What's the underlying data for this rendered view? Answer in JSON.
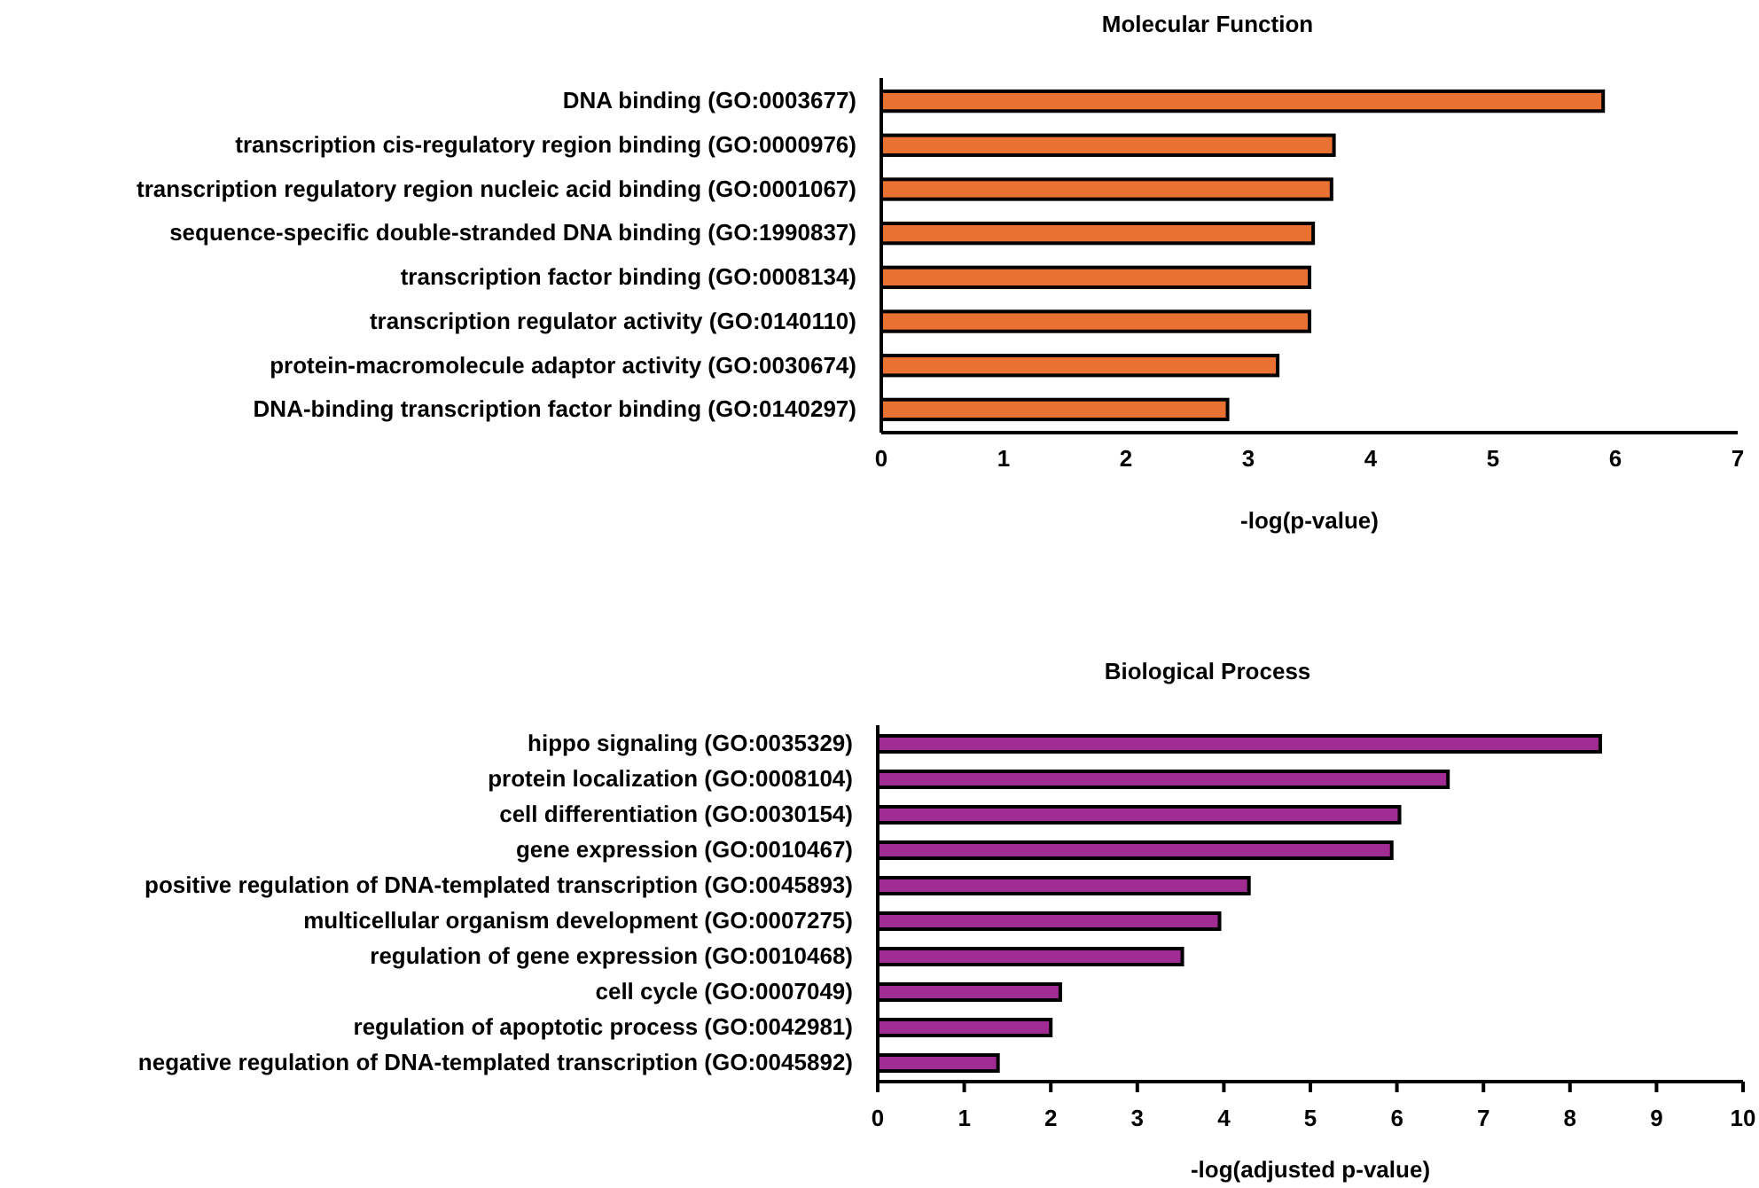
{
  "chart_data": [
    {
      "type": "bar",
      "orientation": "horizontal",
      "title": "Molecular Function",
      "xlabel": "-log(p-value)",
      "categories": [
        "DNA binding (GO:0003677)",
        "transcription cis-regulatory region binding (GO:0000976)",
        "transcription regulatory region nucleic acid binding (GO:0001067)",
        "sequence-specific double-stranded DNA binding (GO:1990837)",
        "transcription factor binding (GO:0008134)",
        "transcription regulator activity (GO:0140110)",
        "protein-macromolecule adaptor activity (GO:0030674)",
        "DNA-binding transcription factor binding (GO:0140297)"
      ],
      "values": [
        5.9,
        3.7,
        3.68,
        3.53,
        3.5,
        3.5,
        3.24,
        2.83
      ],
      "color": "#e97132",
      "xlim": [
        0,
        7
      ],
      "xticks": [
        0,
        1,
        2,
        3,
        4,
        5,
        6,
        7
      ],
      "grid": false
    },
    {
      "type": "bar",
      "orientation": "horizontal",
      "title": "Biological Process",
      "xlabel": "-log(adjusted p-value)",
      "categories": [
        "hippo signaling (GO:0035329)",
        "protein localization (GO:0008104)",
        "cell differentiation (GO:0030154)",
        "gene expression (GO:0010467)",
        "positive regulation of DNA-templated transcription (GO:0045893)",
        "multicellular organism development (GO:0007275)",
        "regulation of gene expression (GO:0010468)",
        "cell cycle (GO:0007049)",
        "regulation of apoptotic process (GO:0042981)",
        "negative regulation of DNA-templated transcription (GO:0045892)"
      ],
      "values": [
        8.35,
        6.59,
        6.03,
        5.94,
        4.29,
        3.95,
        3.52,
        2.11,
        2.0,
        1.39
      ],
      "color": "#a02b93",
      "xlim": [
        0,
        10
      ],
      "xticks": [
        0,
        1,
        2,
        3,
        4,
        5,
        6,
        7,
        8,
        9,
        10
      ],
      "grid": false
    }
  ]
}
